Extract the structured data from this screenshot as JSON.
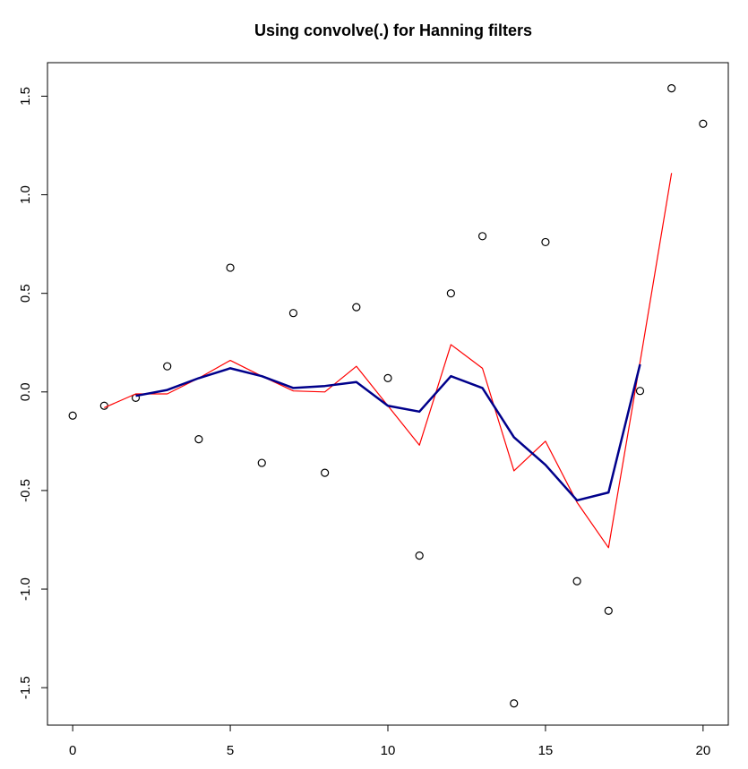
{
  "chart_data": {
    "type": "scatter",
    "title": "Using  convolve(.) for Hanning filters",
    "xlabel": "",
    "ylabel": "",
    "xlim": [
      -0.8,
      20.8
    ],
    "ylim": [
      -1.69,
      1.67
    ],
    "xticks": [
      0,
      5,
      10,
      15,
      20
    ],
    "yticks": [
      -1.5,
      -1.0,
      -0.5,
      0.0,
      0.5,
      1.0,
      1.5
    ],
    "ytick_labels": [
      "-1.5",
      "-1.0",
      "-0.5",
      "0.0",
      "0.5",
      "1.0",
      "1.5"
    ],
    "grid": false,
    "legend": "none",
    "series": [
      {
        "kind": "points",
        "color": "#000000",
        "x": [
          0,
          1,
          2,
          3,
          4,
          5,
          6,
          7,
          8,
          9,
          10,
          11,
          12,
          13,
          14,
          15,
          16,
          17,
          18,
          19,
          20
        ],
        "y": [
          -0.12,
          -0.07,
          -0.03,
          0.13,
          -0.24,
          0.63,
          -0.36,
          0.4,
          -0.41,
          0.43,
          0.07,
          -0.83,
          0.5,
          0.79,
          -1.58,
          0.76,
          -0.96,
          -1.11,
          0.005,
          1.54,
          1.36
        ]
      },
      {
        "kind": "line",
        "color": "#ff0000",
        "x": [
          1,
          2,
          3,
          4,
          5,
          6,
          7,
          8,
          9,
          10,
          11,
          12,
          13,
          14,
          15,
          16,
          17,
          18,
          19
        ],
        "y": [
          -0.08,
          -0.01,
          -0.01,
          0.07,
          0.16,
          0.08,
          0.005,
          0.0,
          0.13,
          -0.07,
          -0.27,
          0.24,
          0.12,
          -0.4,
          -0.25,
          -0.56,
          -0.79,
          0.15,
          1.11
        ]
      },
      {
        "kind": "line",
        "color": "#00008b",
        "x": [
          2,
          3,
          4,
          5,
          6,
          7,
          8,
          9,
          10,
          11,
          12,
          13,
          14,
          15,
          16,
          17,
          18
        ],
        "y": [
          -0.02,
          0.01,
          0.07,
          0.12,
          0.08,
          0.02,
          0.03,
          0.05,
          -0.07,
          -0.1,
          0.08,
          0.02,
          -0.23,
          -0.37,
          -0.55,
          -0.51,
          0.14
        ]
      }
    ]
  }
}
